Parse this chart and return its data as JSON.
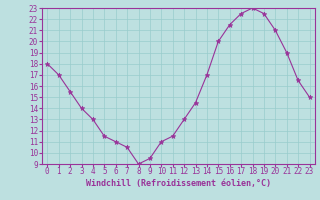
{
  "x": [
    0,
    1,
    2,
    3,
    4,
    5,
    6,
    7,
    8,
    9,
    10,
    11,
    12,
    13,
    14,
    15,
    16,
    17,
    18,
    19,
    20,
    21,
    22,
    23
  ],
  "y": [
    18,
    17,
    15.5,
    14,
    13,
    11.5,
    11,
    10.5,
    9,
    9.5,
    11,
    11.5,
    13,
    14.5,
    17,
    20,
    21.5,
    22.5,
    23,
    22.5,
    21,
    19,
    16.5,
    15
  ],
  "line_color": "#993399",
  "marker_color": "#993399",
  "bg_color": "#bde0e0",
  "grid_color": "#99cccc",
  "border_color": "#993399",
  "xlabel": "Windchill (Refroidissement éolien,°C)",
  "xlabel_color": "#993399",
  "ylim": [
    9,
    23
  ],
  "ytick_min": 9,
  "ytick_max": 23,
  "xlim": [
    -0.5,
    23.5
  ],
  "tick_fontsize": 5.5,
  "xlabel_fontsize": 6.0
}
